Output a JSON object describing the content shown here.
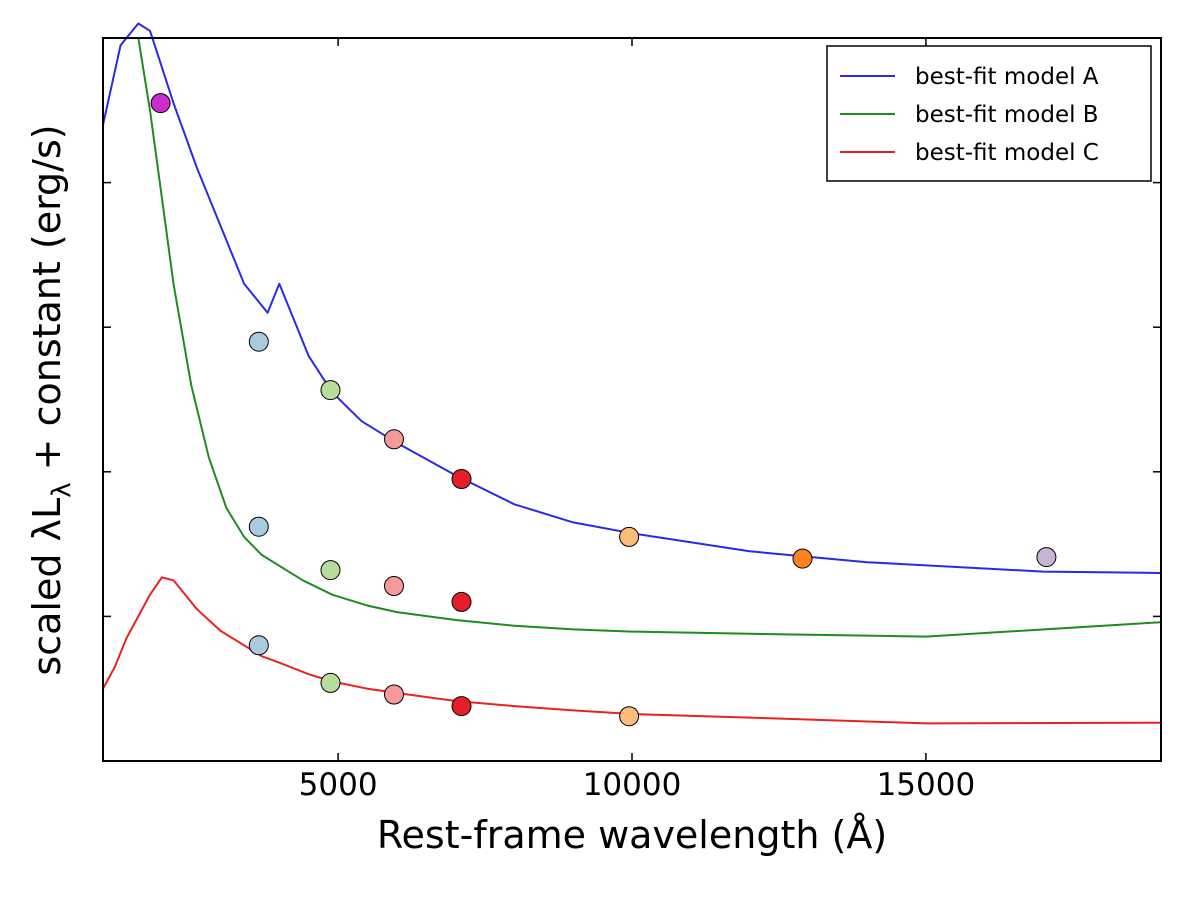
{
  "chart_data": {
    "type": "line",
    "title": "",
    "xlabel": "Rest-frame wavelength (Å)",
    "ylabel": "scaled λL",
    "ylabel_sub": "λ",
    "ylabel_suffix": " + constant (erg/s)",
    "xlim": [
      1000,
      19000
    ],
    "ylim": [
      0,
      100
    ],
    "xticks": [
      5000,
      10000,
      15000
    ],
    "xtick_labels": [
      "5000",
      "10000",
      "15000"
    ],
    "yticks": [
      20,
      40,
      60,
      80
    ],
    "legend_position": "top-right",
    "series": [
      {
        "name": "best-fit model A",
        "color": "#2a2ae6",
        "x": [
          1000,
          1300,
          1600,
          1800,
          2000,
          2200,
          2600,
          3000,
          3400,
          3800,
          4000,
          4200,
          4500,
          4900,
          5400,
          6000,
          7000,
          8000,
          9000,
          10000,
          12000,
          14000,
          17000,
          19000
        ],
        "y": [
          88,
          99,
          102,
          101,
          96,
          91,
          82,
          74,
          66,
          62,
          66,
          62,
          56,
          51,
          47,
          44,
          39.5,
          35.5,
          33,
          31.5,
          29,
          27.5,
          26.2,
          26
        ]
      },
      {
        "name": "best-fit model B",
        "color": "#1f8c1f",
        "x": [
          1600,
          1800,
          2000,
          2200,
          2500,
          2800,
          3100,
          3400,
          3700,
          4000,
          4400,
          4900,
          5500,
          6000,
          7000,
          8000,
          9000,
          10000,
          12000,
          15000,
          19000
        ],
        "y": [
          100,
          90,
          78,
          66,
          52,
          42,
          35,
          31,
          28.5,
          27,
          25,
          23,
          21.5,
          20.6,
          19.5,
          18.7,
          18.2,
          17.9,
          17.6,
          17.2,
          19.2
        ]
      },
      {
        "name": "best-fit model C",
        "color": "#e8231f",
        "x": [
          1000,
          1200,
          1400,
          1600,
          1800,
          2000,
          2200,
          2600,
          3000,
          3400,
          3700,
          4000,
          4500,
          4900,
          5500,
          6000,
          7000,
          8000,
          9000,
          10000,
          12000,
          15000,
          19000
        ],
        "y": [
          10,
          13,
          17,
          20,
          23,
          25.4,
          25,
          21,
          18,
          16,
          14.5,
          13.6,
          12,
          11,
          10,
          9.4,
          8.3,
          7.6,
          7,
          6.5,
          6,
          5.2,
          5.3
        ]
      }
    ],
    "photometry": [
      {
        "series": "best-fit model A",
        "x": [
          1980,
          3650,
          4870,
          5950,
          7100,
          9950,
          12900,
          17050
        ],
        "y": [
          91,
          58,
          51.3,
          44.5,
          39,
          31,
          28,
          28.2
        ],
        "colors": [
          "#cc2ccc",
          "#a9cbe0",
          "#b8dd9b",
          "#f59a99",
          "#e3202a",
          "#fbbb79",
          "#fb821e",
          "#c9b3d6"
        ]
      },
      {
        "series": "best-fit model B",
        "x": [
          3650,
          4870,
          5950,
          7100
        ],
        "y": [
          32.4,
          26.4,
          24.2,
          22
        ],
        "colors": [
          "#a9cbe0",
          "#b8dd9b",
          "#f59a99",
          "#e3202a"
        ]
      },
      {
        "series": "best-fit model C",
        "x": [
          3650,
          4870,
          5950,
          7100,
          9950
        ],
        "y": [
          16,
          10.8,
          9.2,
          7.6,
          6.2
        ],
        "colors": [
          "#a9cbe0",
          "#b8dd9b",
          "#f59a99",
          "#e3202a",
          "#fbbb79"
        ]
      }
    ]
  }
}
